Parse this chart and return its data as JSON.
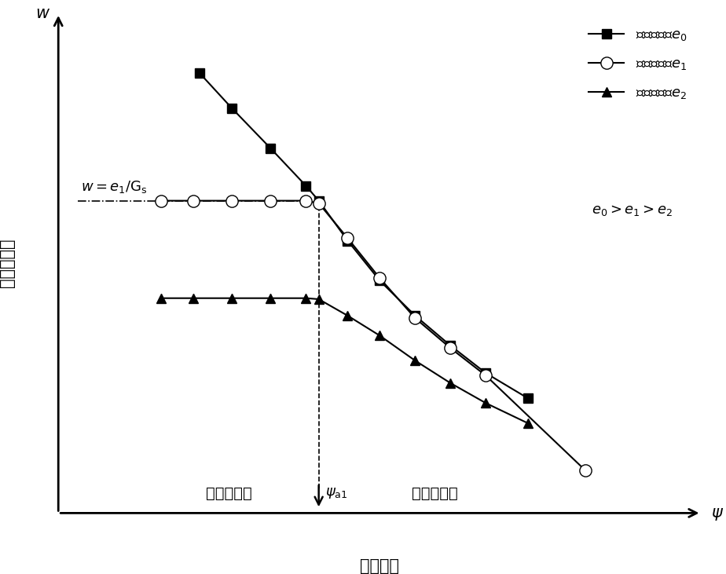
{
  "background_color": "#ffffff",
  "ylabel": "质量含水量",
  "xlabel": "基质吸力",
  "psi_label": "ψ",
  "w_label": "w",
  "series": {
    "e0": {
      "x": [
        2.2,
        2.7,
        3.3,
        3.85,
        4.05,
        4.5,
        5.0,
        5.55,
        6.1,
        6.65,
        7.3
      ],
      "y": [
        8.8,
        8.1,
        7.3,
        6.55,
        6.25,
        5.45,
        4.65,
        3.95,
        3.35,
        2.8,
        2.3
      ],
      "marker": "s",
      "mfc": "black",
      "label": "初始孔隙比$e_0$"
    },
    "e1": {
      "x": [
        1.6,
        2.1,
        2.7,
        3.3,
        3.85,
        4.05,
        4.5,
        5.0,
        5.55,
        6.1,
        6.65,
        8.2
      ],
      "y": [
        6.25,
        6.25,
        6.25,
        6.25,
        6.25,
        6.2,
        5.5,
        4.7,
        3.9,
        3.3,
        2.75,
        0.85
      ],
      "marker": "o",
      "mfc": "white",
      "label": "初始孔隙比$e_1$"
    },
    "e2": {
      "x": [
        1.6,
        2.1,
        2.7,
        3.3,
        3.85,
        4.05,
        4.5,
        5.0,
        5.55,
        6.1,
        6.65,
        7.3
      ],
      "y": [
        4.3,
        4.3,
        4.3,
        4.3,
        4.3,
        4.28,
        3.95,
        3.55,
        3.05,
        2.6,
        2.2,
        1.8
      ],
      "marker": "^",
      "mfc": "black",
      "label": "初始孔隙比$e_2$"
    }
  },
  "psi_a1_x": 4.05,
  "w_e1_gs_y": 6.25,
  "annotation_w": "$w=e_1/\\mathrm{G_s}$",
  "annotation_psi": "$\\psi_{\\mathrm{a1}}$",
  "annotation_low": "低吸力阶段",
  "annotation_high": "高吸力阶段",
  "relation_text": "$e_0>e_1>e_2$",
  "xlim": [
    0,
    10
  ],
  "ylim": [
    0,
    10
  ]
}
